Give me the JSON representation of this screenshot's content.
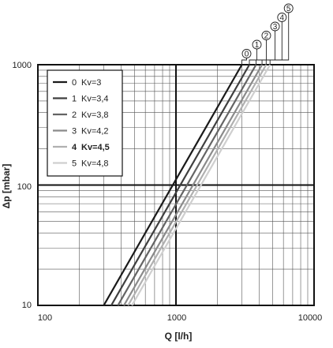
{
  "chart_data": {
    "type": "line",
    "x_scale": "log",
    "y_scale": "log",
    "xlim": [
      100,
      10000
    ],
    "ylim": [
      10,
      1000
    ],
    "xlabel": "Q [l/h]",
    "ylabel": "Δp [mbar]",
    "x_ticks": [
      "100",
      "1000",
      "10000"
    ],
    "y_ticks": [
      "10",
      "100",
      "1000"
    ],
    "grid": true,
    "legend_position": "top-left",
    "series": [
      {
        "name": "Kv=3",
        "number": "0",
        "kv": 3.0,
        "color": "#1a1a1a",
        "bold": false,
        "x": [
          300,
          3000
        ],
        "y": [
          10,
          1000
        ]
      },
      {
        "name": "Kv=3,4",
        "number": "1",
        "kv": 3.4,
        "color": "#3f3f3f",
        "bold": false,
        "x": [
          340,
          3400
        ],
        "y": [
          10,
          1000
        ]
      },
      {
        "name": "Kv=3,8",
        "number": "2",
        "kv": 3.8,
        "color": "#646464",
        "bold": false,
        "x": [
          380,
          3800
        ],
        "y": [
          10,
          1000
        ]
      },
      {
        "name": "Kv=4,2",
        "number": "3",
        "kv": 4.2,
        "color": "#8a8a8a",
        "bold": false,
        "x": [
          420,
          4200
        ],
        "y": [
          10,
          1000
        ]
      },
      {
        "name": "Kv=4,5",
        "number": "4",
        "kv": 4.5,
        "color": "#b0b0b0",
        "bold": true,
        "x": [
          450,
          4500
        ],
        "y": [
          10,
          1000
        ]
      },
      {
        "name": "Kv=4,8",
        "number": "5",
        "kv": 4.8,
        "color": "#cfcfcf",
        "bold": false,
        "x": [
          480,
          4800
        ],
        "y": [
          10,
          1000
        ]
      }
    ]
  }
}
